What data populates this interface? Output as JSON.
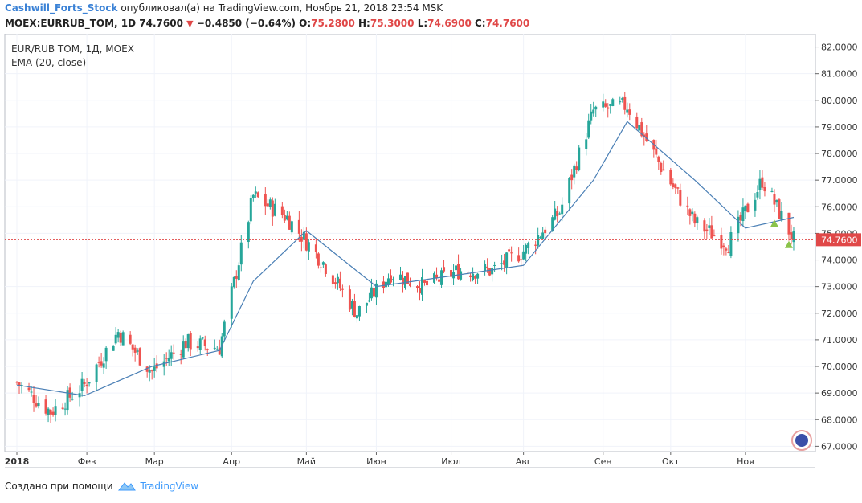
{
  "header": {
    "author": "Cashwill_Forts_Stock",
    "published_text": "опубликовал(а) на TradingView.com, Ноябрь 21, 2018 23:54 MSK",
    "symbol_label": "MOEX:EURRUB_TOM, 1D",
    "last": "74.7600",
    "change": "−0.4850 (−0.64%)",
    "o_label": "O:",
    "o": "75.2800",
    "h_label": "H:",
    "h": "75.3000",
    "l_label": "L:",
    "l": "74.6900",
    "c_label": "C:",
    "c": "74.7600"
  },
  "legend": {
    "instrument": "EUR/RUB TOM, 1Д, MOEX",
    "indicator": "EMA (20, close)"
  },
  "footer": {
    "created_with": "Создано при помощи",
    "brand": "TradingView"
  },
  "colors": {
    "up": "#26a69a",
    "down": "#ef5350",
    "ema": "#4a7fb5",
    "price_line": "#e04848",
    "grid": "#f0f3fa",
    "signal_up": "#8bc34a"
  },
  "chart_data": {
    "type": "candlestick",
    "title": "EUR/RUB TOM, 1Д, MOEX",
    "indicator": "EMA (20, close)",
    "ylim": [
      66.8,
      82.5
    ],
    "y_ticks": [
      "82.0000",
      "81.0000",
      "80.0000",
      "79.0000",
      "78.0000",
      "77.0000",
      "76.0000",
      "75.0000",
      "74.0000",
      "73.0000",
      "72.0000",
      "71.0000",
      "70.0000",
      "69.0000",
      "68.0000",
      "67.0000"
    ],
    "y_tick_values": [
      82,
      81,
      80,
      79,
      78,
      77,
      76,
      75,
      74,
      73,
      72,
      71,
      70,
      69,
      68,
      67
    ],
    "x_ticks": [
      "2018",
      "Фев",
      "Мар",
      "Апр",
      "Май",
      "Июн",
      "Июл",
      "Авг",
      "Сен",
      "Окт",
      "Ноя"
    ],
    "x_tick_dates": [
      "2018-01-03",
      "2018-02-01",
      "2018-03-01",
      "2018-04-02",
      "2018-05-03",
      "2018-06-01",
      "2018-07-02",
      "2018-08-01",
      "2018-09-03",
      "2018-10-01",
      "2018-11-01"
    ],
    "current_price": 74.76,
    "current_price_label": "74.7600",
    "series": [
      {
        "name": "EUR/RUB TOM",
        "kind": "candles",
        "dates": [
          "2018-01-03",
          "2018-01-17",
          "2018-01-31",
          "2018-02-14",
          "2018-02-28",
          "2018-03-14",
          "2018-03-28",
          "2018-04-11",
          "2018-04-25",
          "2018-05-10",
          "2018-05-24",
          "2018-06-07",
          "2018-06-21",
          "2018-07-05",
          "2018-07-19",
          "2018-08-02",
          "2018-08-16",
          "2018-08-30",
          "2018-09-13",
          "2018-09-27",
          "2018-10-11",
          "2018-10-25",
          "2018-11-08",
          "2018-11-21"
        ],
        "close": [
          69.4,
          68.3,
          69.3,
          71.3,
          69.8,
          70.9,
          70.7,
          76.4,
          75.6,
          73.9,
          72.0,
          73.5,
          73.0,
          73.6,
          73.6,
          74.4,
          75.8,
          79.6,
          79.8,
          77.5,
          75.4,
          74.6,
          77.0,
          74.76
        ]
      },
      {
        "name": "EMA (20, close)",
        "kind": "line",
        "dates": [
          "2018-01-03",
          "2018-01-31",
          "2018-02-28",
          "2018-03-28",
          "2018-04-11",
          "2018-05-03",
          "2018-06-01",
          "2018-07-02",
          "2018-08-01",
          "2018-08-30",
          "2018-09-13",
          "2018-10-11",
          "2018-11-01",
          "2018-11-21"
        ],
        "values": [
          69.3,
          68.9,
          70.0,
          70.6,
          73.2,
          75.1,
          73.0,
          73.4,
          73.8,
          77.0,
          79.2,
          77.0,
          75.2,
          75.6
        ]
      }
    ],
    "markers": [
      {
        "date": "2018-11-13",
        "value": 75.7,
        "kind": "signal-up"
      },
      {
        "date": "2018-11-19",
        "value": 74.9,
        "kind": "signal-up"
      }
    ]
  }
}
